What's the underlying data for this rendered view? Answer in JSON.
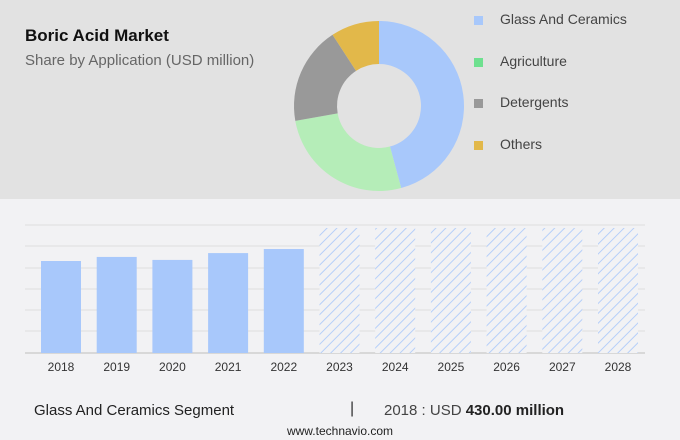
{
  "header": {
    "title": "Boric Acid Market",
    "subtitle": "Share by Application (USD million)"
  },
  "legend": [
    {
      "label": "Glass And Ceramics",
      "color": "#a8c8fb"
    },
    {
      "label": "Agriculture",
      "color": "#6ee08f"
    },
    {
      "label": "Detergents",
      "color": "#999999"
    },
    {
      "label": "Others",
      "color": "#e2b84a"
    }
  ],
  "footer": {
    "segment": "Glass And Ceramics Segment",
    "separator": "|",
    "value_prefix": "2018 : USD ",
    "value_bold": "430.00 million",
    "url": "www.technavio.com"
  },
  "chart_data": [
    {
      "type": "pie",
      "title": "Boric Acid Market",
      "subtitle": "Share by Application (USD million)",
      "donut": true,
      "labels": [
        "Glass And Ceramics",
        "Agriculture",
        "Detergents",
        "Others"
      ],
      "values": [
        45.8,
        26.4,
        18.6,
        9.2
      ],
      "colors": [
        "#a8c8fb",
        "#b5edb8",
        "#999999",
        "#e2b84a"
      ],
      "legend_position": "right"
    },
    {
      "type": "bar",
      "categories": [
        "2018",
        "2019",
        "2020",
        "2021",
        "2022",
        "2023",
        "2024",
        "2025",
        "2026",
        "2027",
        "2028"
      ],
      "values": [
        430,
        449,
        435,
        467,
        486,
        null,
        null,
        null,
        null,
        null,
        null
      ],
      "forecast": [
        false,
        false,
        false,
        false,
        false,
        true,
        true,
        true,
        true,
        true,
        true
      ],
      "series_name": "Glass And Ceramics Segment",
      "xlabel": "",
      "ylabel": "",
      "grid": true,
      "bar_color": "#a8c8fb"
    }
  ]
}
